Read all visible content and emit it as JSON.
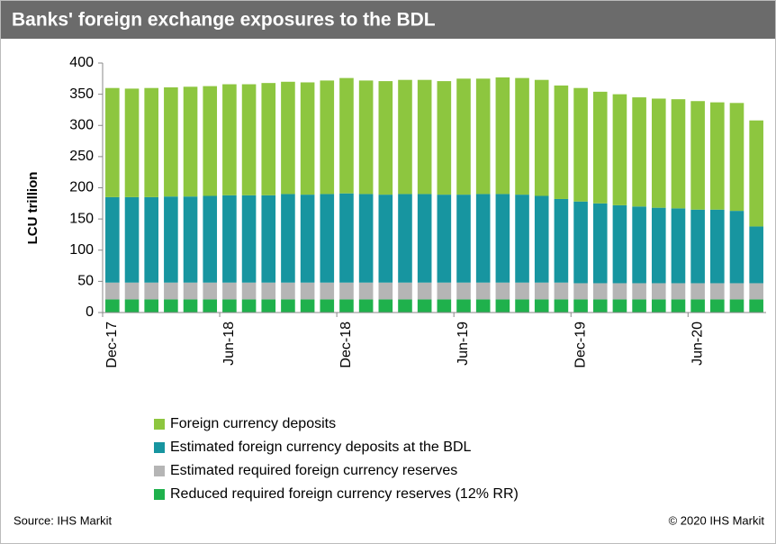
{
  "chart_data": {
    "type": "stacked-bar",
    "title": "Banks' foreign exchange exposures to the BDL",
    "y_label": "LCU trillion",
    "source": "Source: IHS Markit",
    "copyright": "© 2020 IHS Markit",
    "categories": [
      "Dec-17",
      null,
      null,
      null,
      null,
      null,
      "Jun-18",
      null,
      null,
      null,
      null,
      null,
      "Dec-18",
      null,
      null,
      null,
      null,
      null,
      "Jun-19",
      null,
      null,
      null,
      null,
      null,
      "Dec-19",
      null,
      null,
      null,
      null,
      null,
      "Jun-20",
      null,
      null,
      null
    ],
    "ylim": [
      0,
      400
    ],
    "yticks": [
      0,
      50,
      100,
      150,
      200,
      250,
      300,
      350,
      400
    ],
    "legend": "bottom",
    "series": [
      {
        "name": "Foreign currency deposits",
        "color": "#8dc63f",
        "values": [
          175,
          174,
          175,
          175,
          176,
          176,
          178,
          178,
          180,
          180,
          180,
          182,
          185,
          182,
          182,
          183,
          183,
          182,
          186,
          185,
          187,
          187,
          186,
          182,
          182,
          179,
          178,
          175,
          175,
          175,
          174,
          172,
          173,
          170
        ]
      },
      {
        "name": "Estimated foreign currency deposits at the BDL",
        "color": "#1795a0",
        "values": [
          137,
          137,
          137,
          138,
          138,
          139,
          140,
          140,
          140,
          142,
          141,
          142,
          143,
          142,
          141,
          142,
          142,
          141,
          141,
          142,
          142,
          141,
          139,
          134,
          131,
          128,
          125,
          123,
          121,
          120,
          118,
          118,
          116,
          91
        ]
      },
      {
        "name": "Estimated required foreign currency reserves",
        "color": "#b5b5b5",
        "values": [
          27,
          27,
          27,
          27,
          27,
          27,
          27,
          27,
          27,
          27,
          27,
          27,
          27,
          27,
          27,
          27,
          27,
          27,
          27,
          27,
          27,
          27,
          27,
          27,
          26,
          26,
          26,
          26,
          26,
          26,
          26,
          26,
          26,
          26
        ]
      },
      {
        "name": "Reduced required foreign currency reserves (12% RR)",
        "color": "#1fb14c",
        "values": [
          21,
          21,
          21,
          21,
          21,
          21,
          21,
          21,
          21,
          21,
          21,
          21,
          21,
          21,
          21,
          21,
          21,
          21,
          21,
          21,
          21,
          21,
          21,
          21,
          21,
          21,
          21,
          21,
          21,
          21,
          21,
          21,
          21,
          21
        ]
      }
    ]
  }
}
